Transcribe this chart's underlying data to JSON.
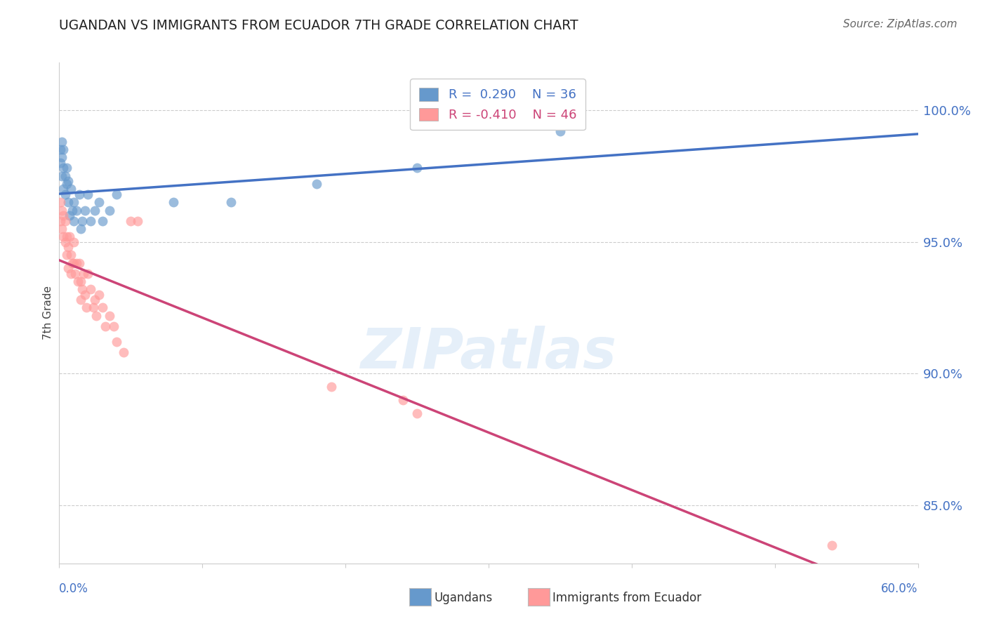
{
  "title": "UGANDAN VS IMMIGRANTS FROM ECUADOR 7TH GRADE CORRELATION CHART",
  "source": "Source: ZipAtlas.com",
  "ylabel": "7th Grade",
  "ytick_labels": [
    "85.0%",
    "90.0%",
    "95.0%",
    "100.0%"
  ],
  "ytick_values": [
    0.85,
    0.9,
    0.95,
    1.0
  ],
  "xmin": 0.0,
  "xmax": 0.6,
  "ymin": 0.828,
  "ymax": 1.018,
  "legend_label1": "Ugandans",
  "legend_label2": "Immigrants from Ecuador",
  "r1": 0.29,
  "n1": 36,
  "r2": -0.41,
  "n2": 46,
  "color1": "#6699CC",
  "color2": "#FF9999",
  "line_color1": "#4472C4",
  "line_color2": "#CC4477",
  "label_color": "#4472C4",
  "watermark": "ZIPatlas",
  "ugandan_x": [
    0.001,
    0.001,
    0.002,
    0.002,
    0.002,
    0.003,
    0.003,
    0.003,
    0.004,
    0.004,
    0.005,
    0.005,
    0.006,
    0.006,
    0.007,
    0.008,
    0.009,
    0.01,
    0.01,
    0.012,
    0.014,
    0.015,
    0.016,
    0.018,
    0.02,
    0.022,
    0.025,
    0.028,
    0.03,
    0.035,
    0.04,
    0.08,
    0.12,
    0.18,
    0.25,
    0.35
  ],
  "ugandan_y": [
    0.98,
    0.985,
    0.975,
    0.982,
    0.988,
    0.97,
    0.978,
    0.985,
    0.968,
    0.975,
    0.972,
    0.978,
    0.965,
    0.973,
    0.96,
    0.97,
    0.962,
    0.958,
    0.965,
    0.962,
    0.968,
    0.955,
    0.958,
    0.962,
    0.968,
    0.958,
    0.962,
    0.965,
    0.958,
    0.962,
    0.968,
    0.965,
    0.965,
    0.972,
    0.978,
    0.992
  ],
  "ecuador_x": [
    0.001,
    0.001,
    0.002,
    0.002,
    0.003,
    0.003,
    0.004,
    0.004,
    0.005,
    0.005,
    0.006,
    0.006,
    0.007,
    0.008,
    0.008,
    0.009,
    0.01,
    0.01,
    0.011,
    0.012,
    0.013,
    0.014,
    0.015,
    0.015,
    0.016,
    0.017,
    0.018,
    0.019,
    0.02,
    0.022,
    0.024,
    0.025,
    0.026,
    0.028,
    0.03,
    0.032,
    0.035,
    0.038,
    0.04,
    0.045,
    0.05,
    0.055,
    0.19,
    0.24,
    0.25,
    0.54
  ],
  "ecuador_y": [
    0.965,
    0.958,
    0.962,
    0.955,
    0.96,
    0.952,
    0.958,
    0.95,
    0.952,
    0.945,
    0.948,
    0.94,
    0.952,
    0.945,
    0.938,
    0.942,
    0.95,
    0.942,
    0.938,
    0.942,
    0.935,
    0.942,
    0.935,
    0.928,
    0.932,
    0.938,
    0.93,
    0.925,
    0.938,
    0.932,
    0.925,
    0.928,
    0.922,
    0.93,
    0.925,
    0.918,
    0.922,
    0.918,
    0.912,
    0.908,
    0.958,
    0.958,
    0.895,
    0.89,
    0.885,
    0.835
  ]
}
